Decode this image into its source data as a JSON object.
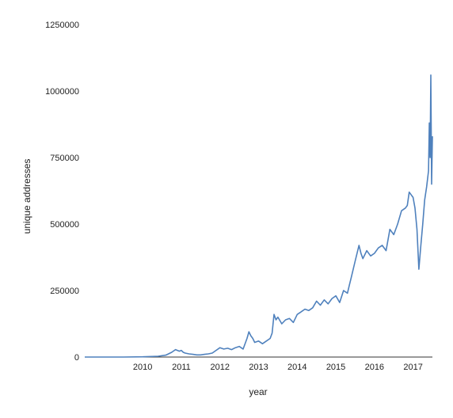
{
  "chart_data": {
    "type": "line",
    "title": "",
    "xlabel": "year",
    "ylabel": "unique addresses",
    "xlim": [
      2009.0,
      2018.0
    ],
    "ylim": [
      0,
      1250000
    ],
    "x_ticks": [
      2010,
      2011,
      2012,
      2013,
      2014,
      2015,
      2016,
      2017
    ],
    "x_tick_labels": [
      "2010",
      "2011",
      "2012",
      "2013",
      "2014",
      "2015",
      "2016",
      "2017"
    ],
    "y_ticks": [
      0,
      250000,
      500000,
      750000,
      1000000,
      1250000
    ],
    "y_tick_labels": [
      "0",
      "250000",
      "500000",
      "750000",
      "1000000",
      "1250000"
    ],
    "grid": false,
    "legend": "none",
    "series": [
      {
        "color": "#4f81bd",
        "x": [
          2009.0,
          2009.5,
          2010.0,
          2010.5,
          2010.9,
          2011.1,
          2011.25,
          2011.35,
          2011.45,
          2011.5,
          2011.55,
          2011.6,
          2011.7,
          2011.8,
          2011.9,
          2012.0,
          2012.1,
          2012.2,
          2012.3,
          2012.4,
          2012.5,
          2012.6,
          2012.7,
          2012.8,
          2012.9,
          2013.0,
          2013.1,
          2013.2,
          2013.25,
          2013.3,
          2013.35,
          2013.4,
          2013.5,
          2013.6,
          2013.7,
          2013.8,
          2013.85,
          2013.9,
          2013.95,
          2014.0,
          2014.1,
          2014.2,
          2014.3,
          2014.4,
          2014.5,
          2014.6,
          2014.7,
          2014.8,
          2014.9,
          2015.0,
          2015.1,
          2015.2,
          2015.3,
          2015.4,
          2015.5,
          2015.6,
          2015.7,
          2015.8,
          2015.85,
          2015.9,
          2016.0,
          2016.1,
          2016.15,
          2016.2,
          2016.3,
          2016.4,
          2016.5,
          2016.6,
          2016.7,
          2016.8,
          2016.9,
          2017.0,
          2017.1,
          2017.2,
          2017.3,
          2017.35,
          2017.4,
          2017.5,
          2017.55,
          2017.6,
          2017.65,
          2017.7,
          2017.75,
          2017.8,
          2017.85,
          2017.9,
          2017.92,
          2017.94,
          2017.96,
          2017.98,
          2018.0
        ],
        "y": [
          0,
          0,
          0,
          800,
          3000,
          7000,
          18000,
          28000,
          22000,
          25000,
          18000,
          15000,
          12000,
          10000,
          8000,
          8000,
          10000,
          12000,
          15000,
          25000,
          35000,
          30000,
          33000,
          28000,
          35000,
          40000,
          30000,
          70000,
          95000,
          80000,
          70000,
          55000,
          60000,
          50000,
          60000,
          70000,
          90000,
          160000,
          140000,
          150000,
          125000,
          140000,
          145000,
          130000,
          160000,
          170000,
          180000,
          175000,
          185000,
          210000,
          195000,
          215000,
          200000,
          220000,
          230000,
          205000,
          250000,
          240000,
          270000,
          300000,
          360000,
          420000,
          390000,
          370000,
          400000,
          380000,
          390000,
          410000,
          420000,
          400000,
          480000,
          460000,
          500000,
          550000,
          560000,
          570000,
          620000,
          600000,
          560000,
          480000,
          330000,
          420000,
          500000,
          590000,
          640000,
          700000,
          880000,
          750000,
          1060000,
          650000,
          830000
        ]
      }
    ]
  }
}
